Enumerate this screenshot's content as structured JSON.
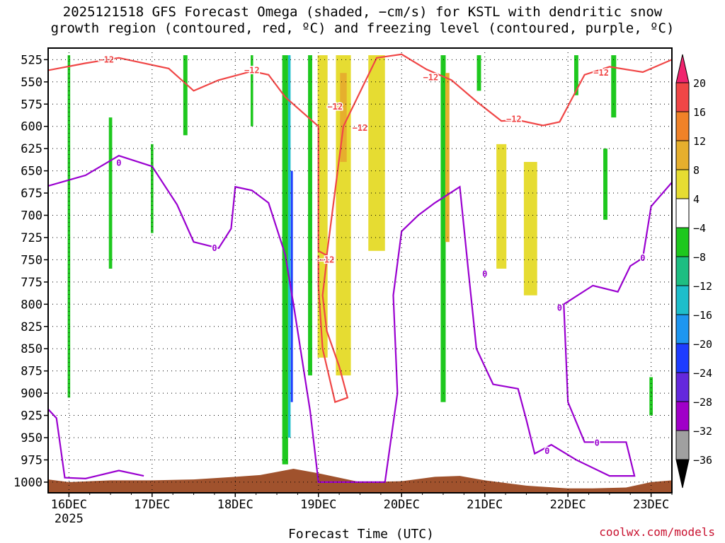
{
  "title_line1": "2025121518 GFS Forecast Omega (shaded, −cm/s) for KSTL with dendritic snow",
  "title_line2": "growth region (contoured, red, ºC) and freezing level (contoured, purple, ºC)",
  "credit": "coolwx.com/models",
  "chart_data": {
    "type": "heatmap",
    "title": "2025121518 GFS Forecast Omega (shaded, −cm/s) for KSTL with dendritic snow growth region (contoured, red, ºC) and freezing level (contoured, purple, ºC)",
    "xlabel": "Forecast Time (UTC)",
    "ylabel": "",
    "x_ticks": [
      "16DEC",
      "17DEC",
      "18DEC",
      "19DEC",
      "20DEC",
      "21DEC",
      "22DEC",
      "23DEC"
    ],
    "x_tick_year": "2025",
    "y_ticks": [
      525,
      550,
      575,
      600,
      625,
      650,
      675,
      700,
      725,
      750,
      775,
      800,
      825,
      850,
      875,
      900,
      925,
      950,
      975,
      1000
    ],
    "x_range_days": [
      15.75,
      23.25
    ],
    "y_range_hPa": [
      512,
      1012
    ],
    "grid": true,
    "colorbar": {
      "labels": [
        "20",
        "16",
        "12",
        "8",
        "4",
        "−4",
        "−8",
        "−12",
        "−16",
        "−20",
        "−24",
        "−28",
        "−32",
        "−36"
      ],
      "colors": [
        "#f0246e",
        "#f04646",
        "#f08228",
        "#e6af2d",
        "#e6dc32",
        "#ffffff",
        "#1ec81e",
        "#1ebe82",
        "#1ebecb",
        "#1e96f0",
        "#1e3cff",
        "#6428dc",
        "#a000c8",
        "#a0a0a0",
        "#000000"
      ]
    },
    "omega_cells": [
      {
        "day": 16.0,
        "p1": 520,
        "p2": 905,
        "w": 0.03,
        "color": "#1ec81e"
      },
      {
        "day": 16.5,
        "p1": 590,
        "p2": 760,
        "w": 0.04,
        "color": "#1ec81e"
      },
      {
        "day": 17.0,
        "p1": 620,
        "p2": 720,
        "w": 0.03,
        "color": "#1ec81e"
      },
      {
        "day": 17.4,
        "p1": 520,
        "p2": 610,
        "w": 0.05,
        "color": "#1ec81e"
      },
      {
        "day": 18.2,
        "p1": 520,
        "p2": 600,
        "w": 0.03,
        "color": "#1ec81e"
      },
      {
        "day": 18.6,
        "p1": 520,
        "p2": 980,
        "w": 0.07,
        "color": "#1ec81e"
      },
      {
        "day": 18.65,
        "p1": 520,
        "p2": 950,
        "w": 0.03,
        "color": "#1ebecb"
      },
      {
        "day": 18.68,
        "p1": 650,
        "p2": 910,
        "w": 0.025,
        "color": "#1e3cff"
      },
      {
        "day": 18.9,
        "p1": 520,
        "p2": 880,
        "w": 0.05,
        "color": "#1ec81e"
      },
      {
        "day": 19.05,
        "p1": 520,
        "p2": 860,
        "w": 0.12,
        "color": "#e6dc32"
      },
      {
        "day": 19.3,
        "p1": 520,
        "p2": 880,
        "w": 0.18,
        "color": "#e6dc32"
      },
      {
        "day": 19.3,
        "p1": 540,
        "p2": 640,
        "w": 0.08,
        "color": "#e6af2d"
      },
      {
        "day": 19.7,
        "p1": 520,
        "p2": 740,
        "w": 0.2,
        "color": "#e6dc32"
      },
      {
        "day": 20.5,
        "p1": 520,
        "p2": 910,
        "w": 0.06,
        "color": "#1ec81e"
      },
      {
        "day": 20.55,
        "p1": 540,
        "p2": 730,
        "w": 0.05,
        "color": "#e6af2d"
      },
      {
        "day": 20.93,
        "p1": 520,
        "p2": 560,
        "w": 0.05,
        "color": "#1ec81e"
      },
      {
        "day": 21.2,
        "p1": 620,
        "p2": 760,
        "w": 0.12,
        "color": "#e6dc32"
      },
      {
        "day": 21.55,
        "p1": 640,
        "p2": 790,
        "w": 0.16,
        "color": "#e6dc32"
      },
      {
        "day": 22.1,
        "p1": 520,
        "p2": 565,
        "w": 0.05,
        "color": "#1ec81e"
      },
      {
        "day": 22.45,
        "p1": 625,
        "p2": 705,
        "w": 0.05,
        "color": "#1ec81e"
      },
      {
        "day": 22.55,
        "p1": 520,
        "p2": 590,
        "w": 0.06,
        "color": "#1ec81e"
      },
      {
        "day": 23.0,
        "p1": 882,
        "p2": 925,
        "w": 0.04,
        "color": "#1ec81e"
      }
    ],
    "dgz_contour": {
      "label": "−12",
      "points": [
        [
          15.75,
          537
        ],
        [
          16.2,
          529
        ],
        [
          16.6,
          523
        ],
        [
          17.2,
          535
        ],
        [
          17.5,
          560
        ],
        [
          17.8,
          548
        ],
        [
          18.2,
          538
        ],
        [
          18.4,
          542
        ],
        [
          18.6,
          567
        ],
        [
          19.0,
          600
        ],
        [
          19.0,
          740
        ],
        [
          19.1,
          745
        ],
        [
          19.3,
          600
        ],
        [
          19.7,
          523
        ],
        [
          20.0,
          519
        ],
        [
          20.3,
          536
        ],
        [
          20.6,
          548
        ],
        [
          20.9,
          572
        ],
        [
          21.2,
          594
        ],
        [
          21.4,
          593
        ],
        [
          21.7,
          599
        ],
        [
          21.9,
          595
        ],
        [
          22.2,
          542
        ],
        [
          22.5,
          533
        ],
        [
          22.9,
          539
        ],
        [
          23.25,
          525
        ]
      ],
      "labels_at": [
        [
          16.45,
          525
        ],
        [
          18.2,
          537
        ],
        [
          19.2,
          578
        ],
        [
          19.5,
          602
        ],
        [
          20.35,
          545
        ],
        [
          21.35,
          592
        ],
        [
          22.4,
          540
        ],
        [
          19.1,
          750
        ]
      ]
    },
    "dgz_lower_contour": {
      "points": [
        [
          19.1,
          750
        ],
        [
          19.05,
          790
        ],
        [
          19.1,
          830
        ],
        [
          19.25,
          870
        ],
        [
          19.35,
          905
        ],
        [
          19.2,
          910
        ],
        [
          19.05,
          850
        ],
        [
          19.0,
          780
        ],
        [
          19.0,
          745
        ]
      ]
    },
    "freezing_contour": {
      "label": "0",
      "points": [
        [
          15.75,
          667
        ],
        [
          16.2,
          655
        ],
        [
          16.6,
          633
        ],
        [
          17.0,
          645
        ],
        [
          17.3,
          688
        ],
        [
          17.5,
          730
        ],
        [
          17.8,
          737
        ],
        [
          17.95,
          715
        ],
        [
          18.0,
          668
        ],
        [
          18.2,
          672
        ],
        [
          18.4,
          686
        ],
        [
          18.6,
          744
        ],
        [
          18.7,
          800
        ],
        [
          18.8,
          860
        ],
        [
          18.9,
          920
        ],
        [
          19.0,
          1000
        ],
        [
          19.8,
          1000
        ],
        [
          19.95,
          900
        ],
        [
          19.9,
          790
        ],
        [
          20.0,
          718
        ],
        [
          20.2,
          700
        ],
        [
          20.4,
          686
        ],
        [
          20.7,
          668
        ],
        [
          20.8,
          760
        ],
        [
          20.9,
          850
        ],
        [
          21.1,
          890
        ],
        [
          21.4,
          895
        ],
        [
          21.5,
          930
        ],
        [
          21.6,
          968
        ],
        [
          21.8,
          958
        ],
        [
          22.1,
          975
        ],
        [
          22.5,
          993
        ],
        [
          22.8,
          993
        ],
        [
          22.7,
          955
        ],
        [
          22.2,
          955
        ],
        [
          22.0,
          910
        ],
        [
          21.95,
          800
        ],
        [
          22.3,
          779
        ],
        [
          22.6,
          786
        ],
        [
          22.75,
          757
        ],
        [
          22.9,
          748
        ],
        [
          23.0,
          690
        ],
        [
          23.25,
          663
        ]
      ],
      "labels_at": [
        [
          16.6,
          641
        ],
        [
          17.75,
          737
        ],
        [
          21.0,
          766
        ],
        [
          21.9,
          804
        ],
        [
          22.35,
          956
        ],
        [
          21.75,
          965
        ],
        [
          22.9,
          748
        ]
      ]
    },
    "freezing_bottom_contour": {
      "points": [
        [
          15.75,
          918
        ],
        [
          15.85,
          928
        ],
        [
          15.95,
          995
        ],
        [
          16.2,
          996
        ],
        [
          16.6,
          987
        ],
        [
          16.9,
          993
        ]
      ]
    },
    "terrain_top": [
      [
        15.75,
        997
      ],
      [
        16.0,
        1000
      ],
      [
        16.5,
        998
      ],
      [
        17.0,
        998
      ],
      [
        17.5,
        997
      ],
      [
        18.0,
        994
      ],
      [
        18.3,
        992
      ],
      [
        18.7,
        985
      ],
      [
        19.0,
        990
      ],
      [
        19.5,
        1000
      ],
      [
        20.0,
        999
      ],
      [
        20.4,
        994
      ],
      [
        20.7,
        993
      ],
      [
        21.0,
        998
      ],
      [
        21.5,
        1004
      ],
      [
        22.0,
        1007
      ],
      [
        22.3,
        1007
      ],
      [
        22.7,
        1006
      ],
      [
        23.0,
        1000
      ],
      [
        23.25,
        998
      ]
    ]
  }
}
